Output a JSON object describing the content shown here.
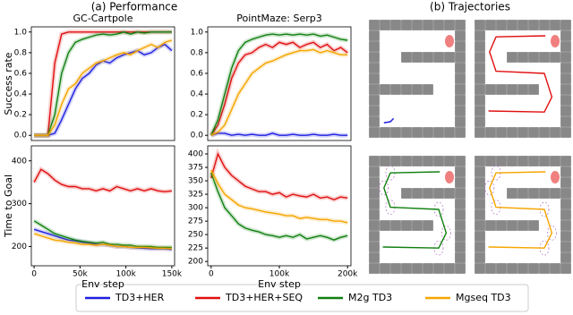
{
  "figure_titles": [
    "(a) Performance",
    "(b) Trajectories"
  ],
  "chart_data": [
    {
      "type": "line",
      "title": "GC-Cartpole",
      "ylabel": "Success rate",
      "x": [
        0,
        7500,
        15000,
        22500,
        30000,
        37500,
        45000,
        52500,
        60000,
        67500,
        75000,
        82500,
        90000,
        97500,
        105000,
        112500,
        120000,
        127500,
        135000,
        142500,
        150000
      ],
      "xlim": [
        -3000,
        153000
      ],
      "ylim": [
        -0.05,
        1.05
      ],
      "yticks": [
        {
          "value": 0,
          "label": "0.0"
        },
        0.2,
        0.4,
        0.6,
        0.8,
        {
          "value": 1,
          "label": "1.0"
        }
      ],
      "series": [
        {
          "name": "TD3+HER",
          "color": "#1f1fe0",
          "values": [
            0,
            0,
            0,
            0.02,
            0.15,
            0.3,
            0.45,
            0.55,
            0.6,
            0.68,
            0.72,
            0.7,
            0.75,
            0.78,
            0.8,
            0.82,
            0.78,
            0.8,
            0.85,
            0.88,
            0.82
          ]
        },
        {
          "name": "TD3+HER+SEQ",
          "color": "#e01010",
          "values": [
            0,
            0,
            0,
            0.7,
            0.98,
            1,
            1,
            1,
            1,
            1,
            1,
            1,
            1,
            1,
            1,
            1,
            1,
            1,
            1,
            1,
            1
          ]
        },
        {
          "name": "M2g TD3",
          "color": "#108010",
          "values": [
            0,
            0,
            0,
            0.2,
            0.6,
            0.8,
            0.9,
            0.93,
            0.95,
            0.97,
            0.98,
            0.97,
            0.98,
            1,
            0.98,
            1,
            0.99,
            1,
            1,
            1,
            1
          ]
        },
        {
          "name": "Mgseq TD3",
          "color": "#f5a500",
          "values": [
            0,
            0,
            0,
            0.1,
            0.3,
            0.45,
            0.5,
            0.6,
            0.65,
            0.7,
            0.72,
            0.75,
            0.78,
            0.8,
            0.78,
            0.82,
            0.85,
            0.88,
            0.85,
            0.9,
            0.92
          ]
        }
      ]
    },
    {
      "type": "line",
      "title": "PointMaze: Serp3",
      "x": [
        0,
        10000,
        20000,
        30000,
        40000,
        50000,
        60000,
        70000,
        80000,
        90000,
        100000,
        110000,
        120000,
        130000,
        140000,
        150000,
        160000,
        170000,
        180000,
        190000,
        200000
      ],
      "xlim": [
        -5000,
        205000
      ],
      "ylim": [
        -0.05,
        1.05
      ],
      "yticks": [
        {
          "value": 0,
          "label": "0.0"
        },
        0.2,
        0.4,
        0.6,
        0.8,
        {
          "value": 1,
          "label": "1.0"
        }
      ],
      "series": [
        {
          "name": "TD3+HER",
          "color": "#1f1fe0",
          "values": [
            0,
            0.02,
            0.02,
            0,
            0.01,
            0,
            0.01,
            0,
            0,
            0.02,
            0,
            0,
            0.01,
            0,
            0,
            0.01,
            0,
            0,
            0.01,
            0,
            0
          ]
        },
        {
          "name": "TD3+HER+SEQ",
          "color": "#e01010",
          "values": [
            0,
            0.1,
            0.3,
            0.55,
            0.7,
            0.78,
            0.8,
            0.85,
            0.88,
            0.85,
            0.9,
            0.88,
            0.9,
            0.85,
            0.88,
            0.9,
            0.85,
            0.88,
            0.82,
            0.85,
            0.8
          ]
        },
        {
          "name": "M2g TD3",
          "color": "#108010",
          "values": [
            0,
            0.15,
            0.4,
            0.65,
            0.82,
            0.9,
            0.93,
            0.95,
            0.97,
            0.98,
            0.97,
            0.98,
            0.97,
            0.98,
            0.97,
            0.98,
            0.96,
            0.97,
            0.95,
            0.93,
            0.92
          ]
        },
        {
          "name": "Mgseq TD3",
          "color": "#f5a500",
          "values": [
            0,
            0.03,
            0.1,
            0.25,
            0.4,
            0.5,
            0.6,
            0.65,
            0.7,
            0.72,
            0.75,
            0.78,
            0.8,
            0.82,
            0.82,
            0.83,
            0.8,
            0.82,
            0.8,
            0.78,
            0.78
          ]
        }
      ]
    },
    {
      "type": "line",
      "ylabel": "Time to Goal",
      "xlabel": "Env step",
      "x": [
        0,
        7500,
        15000,
        22500,
        30000,
        37500,
        45000,
        52500,
        60000,
        67500,
        75000,
        82500,
        90000,
        97500,
        105000,
        112500,
        120000,
        127500,
        135000,
        142500,
        150000
      ],
      "xlim": [
        -3000,
        153000
      ],
      "ylim": [
        155,
        435
      ],
      "xticks": [
        0,
        {
          "value": 50000,
          "label": "50k"
        },
        {
          "value": 100000,
          "label": "100k"
        },
        {
          "value": 150000,
          "label": "150k"
        }
      ],
      "yticks": [
        200,
        300,
        400
      ],
      "series": [
        {
          "name": "TD3+HER",
          "color": "#1f1fe0",
          "values": [
            240,
            235,
            230,
            225,
            220,
            215,
            213,
            210,
            208,
            205,
            205,
            203,
            200,
            200,
            198,
            197,
            196,
            195,
            195,
            195,
            193
          ]
        },
        {
          "name": "TD3+HER+SEQ",
          "color": "#e01010",
          "values": [
            350,
            380,
            370,
            355,
            345,
            340,
            340,
            335,
            335,
            330,
            335,
            330,
            340,
            335,
            330,
            335,
            330,
            335,
            330,
            328,
            330
          ]
        },
        {
          "name": "M2g TD3",
          "color": "#108010",
          "values": [
            260,
            250,
            240,
            230,
            225,
            220,
            215,
            212,
            210,
            208,
            210,
            205,
            205,
            203,
            203,
            200,
            200,
            200,
            198,
            198,
            198
          ]
        },
        {
          "name": "Mgseq TD3",
          "color": "#f5a500",
          "values": [
            230,
            225,
            220,
            215,
            213,
            210,
            208,
            205,
            205,
            203,
            205,
            203,
            200,
            200,
            198,
            198,
            198,
            197,
            196,
            196,
            195
          ]
        }
      ]
    },
    {
      "type": "line",
      "xlabel": "Env step",
      "x": [
        0,
        10000,
        20000,
        30000,
        40000,
        50000,
        60000,
        70000,
        80000,
        90000,
        100000,
        110000,
        120000,
        130000,
        140000,
        150000,
        160000,
        170000,
        180000,
        190000,
        200000
      ],
      "xlim": [
        -5000,
        205000
      ],
      "ylim": [
        192,
        415
      ],
      "xticks": [
        0,
        {
          "value": 100000,
          "label": "100k"
        },
        {
          "value": 200000,
          "label": "200k"
        }
      ],
      "yticks": [
        200,
        225,
        250,
        275,
        300,
        325,
        350,
        375,
        400
      ],
      "series": [
        {
          "name": "TD3+HER+SEQ",
          "color": "#e01010",
          "values": [
            355,
            400,
            375,
            360,
            350,
            340,
            335,
            330,
            330,
            325,
            328,
            320,
            325,
            322,
            320,
            325,
            318,
            320,
            315,
            320,
            318
          ]
        },
        {
          "name": "M2g TD3",
          "color": "#108010",
          "values": [
            365,
            330,
            300,
            285,
            270,
            262,
            258,
            255,
            250,
            248,
            245,
            248,
            245,
            250,
            242,
            245,
            248,
            245,
            240,
            245,
            248
          ]
        },
        {
          "name": "Mgseq TD3",
          "color": "#f5a500",
          "values": [
            370,
            345,
            325,
            315,
            305,
            300,
            298,
            295,
            292,
            290,
            288,
            285,
            285,
            280,
            282,
            280,
            278,
            278,
            275,
            275,
            272
          ]
        }
      ]
    }
  ]
}
